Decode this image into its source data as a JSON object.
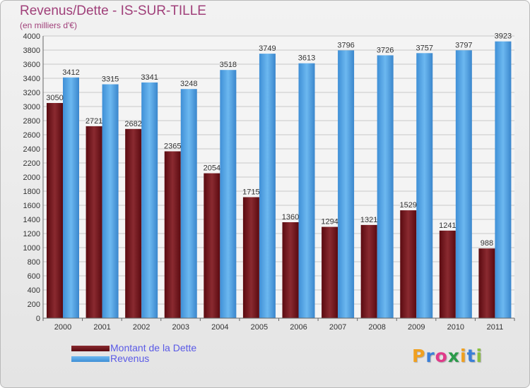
{
  "header": {
    "title": "Revenus/Dette - IS-SUR-TILLE",
    "subtitle": "(en milliers d'€)"
  },
  "chart_data": {
    "type": "bar",
    "categories": [
      "2000",
      "2001",
      "2002",
      "2003",
      "2004",
      "2005",
      "2006",
      "2007",
      "2008",
      "2009",
      "2010",
      "2011"
    ],
    "series": [
      {
        "name": "Montant de la Dette",
        "color": "#7a0f17",
        "values": [
          3050,
          2721,
          2682,
          2365,
          2054,
          1715,
          1360,
          1294,
          1321,
          1529,
          1241,
          988
        ]
      },
      {
        "name": "Revenus",
        "color": "#4aa0e4",
        "values": [
          3412,
          3315,
          3341,
          3248,
          3518,
          3749,
          3613,
          3796,
          3726,
          3757,
          3797,
          3923
        ]
      }
    ],
    "ylim": [
      0,
      4000
    ],
    "ytick_step": 200,
    "grid": true,
    "legend": "bottom-left"
  },
  "logo": {
    "letters": [
      "P",
      "r",
      "o",
      "x",
      "i",
      "t",
      "i"
    ],
    "colors": [
      "#f0a020",
      "#3a7fd8",
      "#e03a8a",
      "#2a9a4a",
      "#f0a020",
      "#3a7fd8",
      "#8ac040"
    ]
  }
}
